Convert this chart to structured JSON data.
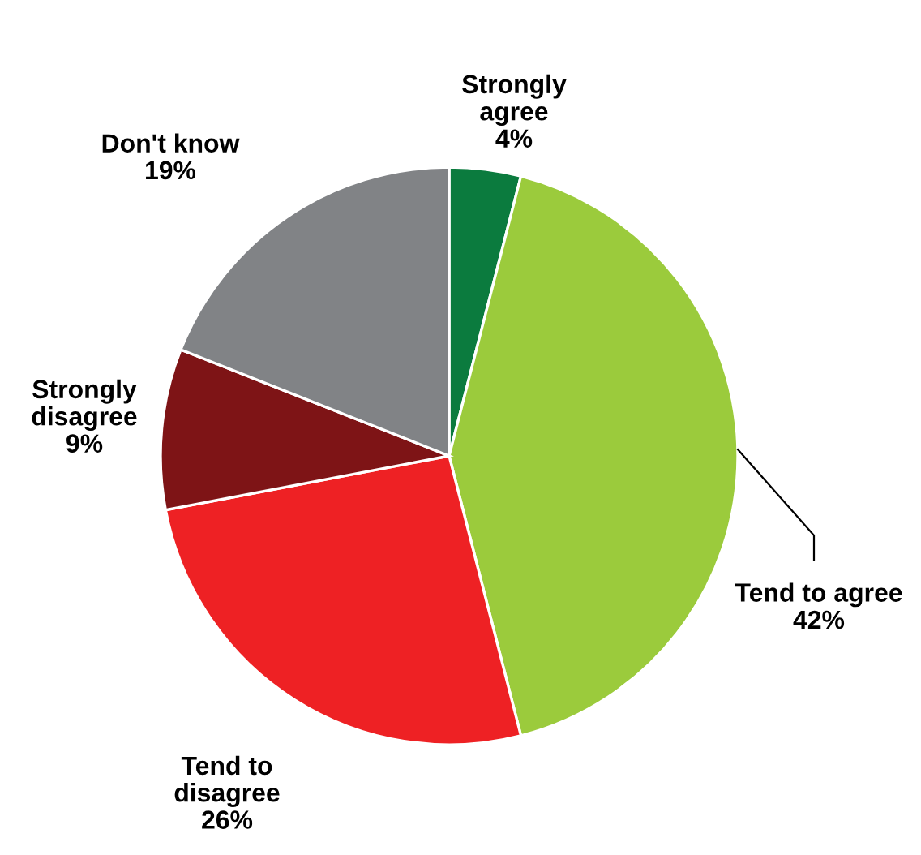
{
  "chart_data": {
    "type": "pie",
    "categories": [
      "Strongly\nagree",
      "Tend to agree",
      "Tend to\ndisagree",
      "Strongly\ndisagree",
      "Don't know"
    ],
    "values": [
      4,
      42,
      26,
      9,
      19
    ],
    "value_labels": [
      "4%",
      "42%",
      "26%",
      "9%",
      "19%"
    ],
    "colors": [
      "#0b7b3e",
      "#9bcb3c",
      "#ee2124",
      "#7e1416",
      "#818386"
    ]
  }
}
